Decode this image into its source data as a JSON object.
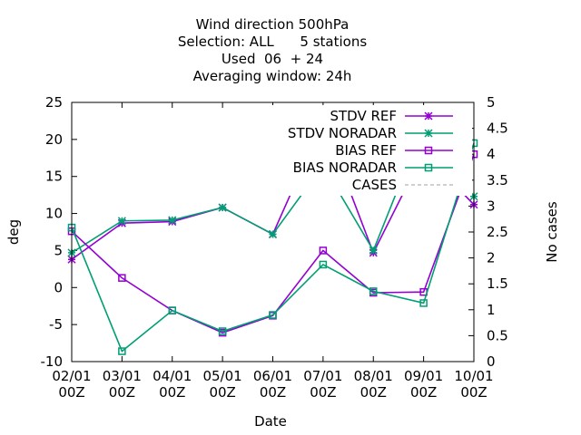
{
  "chart_data": {
    "type": "line",
    "title_lines": [
      "Wind direction 500hPa",
      "Selection: ALL      5 stations",
      "Used  06  + 24",
      "Averaging window: 24h"
    ],
    "xlabel": "Date",
    "ylabel": "deg",
    "y2label": "No cases",
    "x_ticks": [
      "02/01\n00Z",
      "03/01\n00Z",
      "04/01\n00Z",
      "05/01\n00Z",
      "06/01\n00Z",
      "07/01\n00Z",
      "08/01\n00Z",
      "09/01\n00Z",
      "10/01\n00Z"
    ],
    "ylim": [
      -10,
      25
    ],
    "y_ticks": [
      -10,
      -5,
      0,
      5,
      10,
      15,
      20,
      25
    ],
    "y2lim": [
      0,
      5
    ],
    "y2_ticks": [
      "0",
      "0.5",
      "1",
      "1.5",
      "2",
      "2.5",
      "3",
      "3.5",
      "4",
      "4.5",
      "5"
    ],
    "legend_position": "top-right",
    "series": [
      {
        "name": "STDV REF",
        "axis": "y",
        "marker": "star",
        "color": "#9400d3",
        "dashed": false,
        "values": [
          3.8,
          8.7,
          8.9,
          10.8,
          7.2,
          22.5,
          4.7,
          18.2,
          11.2
        ]
      },
      {
        "name": "STDV NORADAR",
        "axis": "y",
        "marker": "star",
        "color": "#009e73",
        "dashed": false,
        "values": [
          4.7,
          9.0,
          9.1,
          10.8,
          7.2,
          16.5,
          5.0,
          22.0,
          12.3
        ]
      },
      {
        "name": "BIAS REF",
        "axis": "y",
        "marker": "square",
        "color": "#9400d3",
        "dashed": false,
        "values": [
          7.6,
          1.3,
          -3.1,
          -6.1,
          -3.8,
          5.0,
          -0.7,
          -0.6,
          18.0
        ]
      },
      {
        "name": "BIAS NORADAR",
        "axis": "y",
        "marker": "square",
        "color": "#009e73",
        "dashed": false,
        "values": [
          8.1,
          -8.6,
          -3.1,
          -5.9,
          -3.7,
          3.1,
          -0.5,
          -2.1,
          19.5
        ]
      },
      {
        "name": "CASES",
        "axis": "y2",
        "marker": "none",
        "color": "#a0a0a0",
        "dashed": true,
        "values": [
          5,
          5,
          5,
          5,
          5,
          5,
          5,
          5,
          5
        ]
      }
    ]
  }
}
